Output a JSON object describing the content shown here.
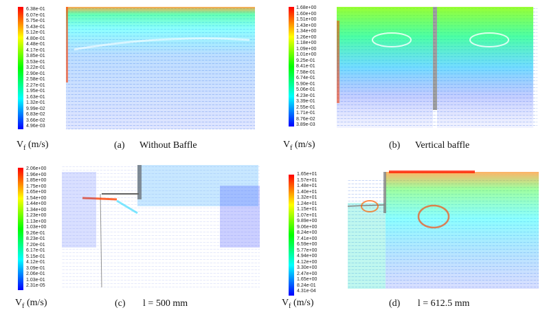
{
  "panels": [
    {
      "vf_label": "Vf (m/s)",
      "vf_main": "V",
      "vf_sub": "f",
      "vf_unit": " (m/s)",
      "caption_letter": "(a)",
      "caption_text": "Without Baffle",
      "colorbar_ticks": [
        "6.38e-01",
        "6.07e-01",
        "5.75e-01",
        "5.43e-01",
        "5.12e-01",
        "4.80e-01",
        "4.48e-01",
        "4.17e-01",
        "3.85e-01",
        "3.53e-01",
        "3.22e-01",
        "2.90e-01",
        "2.58e-01",
        "2.27e-01",
        "1.95e-01",
        "1.63e-01",
        "1.32e-01",
        "9.99e-02",
        "6.83e-02",
        "3.66e-02",
        "4.96e-03"
      ]
    },
    {
      "vf_label": "Vf (m/s)",
      "vf_main": "V",
      "vf_sub": "f",
      "vf_unit": " (m/s)",
      "caption_letter": "(b)",
      "caption_text": "Vertical baffle",
      "colorbar_ticks": [
        "1.68e+00",
        "1.60e+00",
        "1.51e+00",
        "1.43e+00",
        "1.34e+00",
        "1.26e+00",
        "1.18e+00",
        "1.09e+00",
        "1.01e+00",
        "9.25e-01",
        "8.41e-01",
        "7.58e-01",
        "6.74e-01",
        "5.90e-01",
        "5.06e-01",
        "4.23e-01",
        "3.39e-01",
        "2.55e-01",
        "1.71e-01",
        "8.76e-02",
        "3.89e-03"
      ]
    },
    {
      "vf_label": "Vf (m/s)",
      "vf_main": "V",
      "vf_sub": "f",
      "vf_unit": " (m/s)",
      "caption_letter": "(c)",
      "caption_text": "l = 500 mm",
      "colorbar_ticks": [
        "2.06e+00",
        "1.96e+00",
        "1.85e+00",
        "1.75e+00",
        "1.65e+00",
        "1.54e+00",
        "1.44e+00",
        "1.34e+00",
        "1.23e+00",
        "1.13e+00",
        "1.03e+00",
        "9.26e-01",
        "8.23e-01",
        "7.20e-01",
        "6.17e-01",
        "5.15e-01",
        "4.12e-01",
        "3.09e-01",
        "2.06e-01",
        "1.03e-01",
        "2.31e-05"
      ]
    },
    {
      "vf_label": "Vf (m/s)",
      "vf_main": "V",
      "vf_sub": "f",
      "vf_unit": " (m/s)",
      "caption_letter": "(d)",
      "caption_text": "l = 612.5 mm",
      "colorbar_ticks": [
        "1.65e+01",
        "1.57e+01",
        "1.48e+01",
        "1.40e+01",
        "1.32e+01",
        "1.24e+01",
        "1.15e+01",
        "1.07e+01",
        "9.89e+00",
        "9.06e+00",
        "8.24e+00",
        "7.41e+00",
        "6.59e+00",
        "5.77e+00",
        "4.94e+00",
        "4.12e+00",
        "3.30e+00",
        "2.47e+00",
        "1.65e+00",
        "8.24e-01",
        "4.31e-04"
      ]
    }
  ],
  "colorbar_colors": [
    "#ff0000",
    "#ff4000",
    "#ff8000",
    "#ffbf00",
    "#ffff00",
    "#bfff00",
    "#80ff00",
    "#40ff00",
    "#00ff00",
    "#00ff40",
    "#00ff80",
    "#00ffbf",
    "#00ffff",
    "#00bfff",
    "#0080ff",
    "#0040ff",
    "#0000ff"
  ]
}
